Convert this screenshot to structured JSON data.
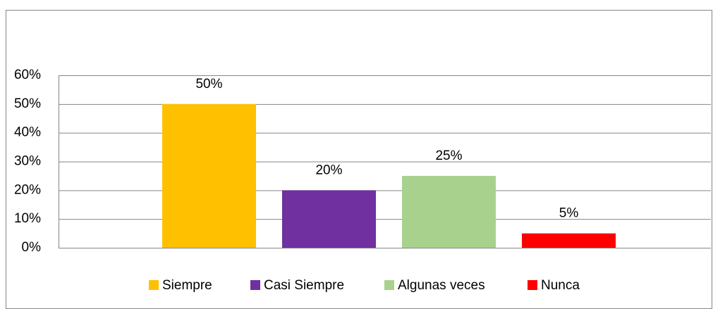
{
  "chart_data": {
    "type": "bar",
    "categories": [
      null
    ],
    "series": [
      {
        "name": "Siempre",
        "color": "#FFC000",
        "values": [
          50
        ],
        "value_labels": [
          "50%"
        ]
      },
      {
        "name": "Casi Siempre",
        "color": "#7030A0",
        "values": [
          20
        ],
        "value_labels": [
          "20%"
        ]
      },
      {
        "name": "Algunas veces",
        "color": "#A9D18E",
        "values": [
          25
        ],
        "value_labels": [
          "25%"
        ]
      },
      {
        "name": "Nunca",
        "color": "#FF0000",
        "values": [
          5
        ],
        "value_labels": [
          "5%"
        ]
      }
    ],
    "ylim": [
      0,
      60
    ],
    "yticks": [
      {
        "value": 0,
        "label": "0%"
      },
      {
        "value": 10,
        "label": "10%"
      },
      {
        "value": 20,
        "label": "20%"
      },
      {
        "value": 30,
        "label": "30%"
      },
      {
        "value": 40,
        "label": "40%"
      },
      {
        "value": 50,
        "label": "50%"
      },
      {
        "value": 60,
        "label": "60%"
      }
    ],
    "grid": true,
    "legend": "bottom"
  }
}
